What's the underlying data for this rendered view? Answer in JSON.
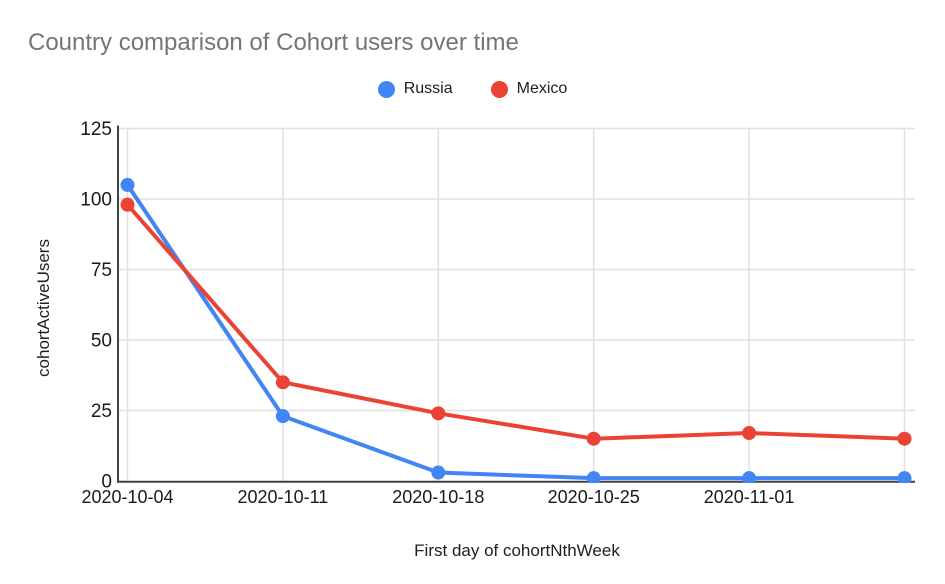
{
  "chart_data": {
    "type": "line",
    "title": "Country comparison of Cohort users over time",
    "xlabel": "First day of cohortNthWeek",
    "ylabel": "cohortActiveUsers",
    "categories": [
      "2020-10-04",
      "2020-10-11",
      "2020-10-18",
      "2020-10-25",
      "2020-11-01",
      ""
    ],
    "series": [
      {
        "name": "Russia",
        "color": "#4285F4",
        "values": [
          105,
          23,
          3,
          1,
          1,
          1
        ]
      },
      {
        "name": "Mexico",
        "color": "#EA4335",
        "values": [
          98,
          35,
          24,
          15,
          17,
          15
        ]
      }
    ],
    "y_ticks": [
      0,
      25,
      50,
      75,
      100,
      125
    ],
    "ylim": [
      0,
      125
    ],
    "grid": true,
    "legend_position": "top",
    "marker": "circle",
    "colors": {
      "grid": "#e0e0e0",
      "axis": "#424242",
      "title_text": "#757575",
      "tick_text": "#1a1a1a",
      "axis_title_text": "#202124",
      "legend_text": "#202124",
      "background": "#ffffff"
    }
  }
}
